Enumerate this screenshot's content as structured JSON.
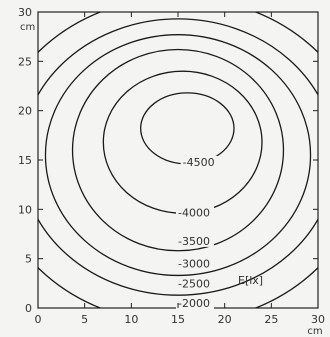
{
  "chart_data": {
    "type": "contour",
    "xlim": [
      0,
      30
    ],
    "ylim": [
      0,
      30
    ],
    "x_ticks": [
      0,
      5,
      10,
      15,
      20,
      25,
      30
    ],
    "y_ticks": [
      0,
      5,
      10,
      15,
      20,
      25,
      30
    ],
    "x_tick_labels": [
      "0",
      "5",
      "10",
      "15",
      "20",
      "25",
      "30"
    ],
    "y_tick_labels": [
      "0",
      "5",
      "10",
      "15",
      "20",
      "25",
      "30"
    ],
    "x_unit_label": "cm",
    "y_unit_label": "cm",
    "quantity_label": "E[lx]",
    "grid": false,
    "peak_estimate": {
      "x": 15,
      "y": 18.5
    },
    "levels": [
      {
        "value": 2000,
        "label": "-2000",
        "center": [
          15,
          15
        ],
        "rx": 20.0,
        "ry": 16.5,
        "label_pos": [
          15,
          0.3
        ]
      },
      {
        "value": 2500,
        "label": "-2500",
        "center": [
          15,
          15.3
        ],
        "rx": 16.8,
        "ry": 14.0,
        "label_pos": [
          15,
          2.3
        ]
      },
      {
        "value": 3000,
        "label": "-3000",
        "center": [
          15,
          15.5
        ],
        "rx": 14.2,
        "ry": 12.2,
        "label_pos": [
          15,
          4.3
        ]
      },
      {
        "value": 3500,
        "label": "-3500",
        "center": [
          15,
          16
        ],
        "rx": 11.3,
        "ry": 10.2,
        "label_pos": [
          15,
          6.6
        ]
      },
      {
        "value": 4000,
        "label": "-4000",
        "center": [
          15.5,
          16.8
        ],
        "rx": 8.5,
        "ry": 7.2,
        "label_pos": [
          15,
          9.5
        ]
      },
      {
        "value": 4500,
        "label": "-4500",
        "center": [
          16,
          18.2
        ],
        "rx": 5.0,
        "ry": 3.6,
        "label_pos": [
          15.5,
          14.6
        ]
      }
    ]
  }
}
